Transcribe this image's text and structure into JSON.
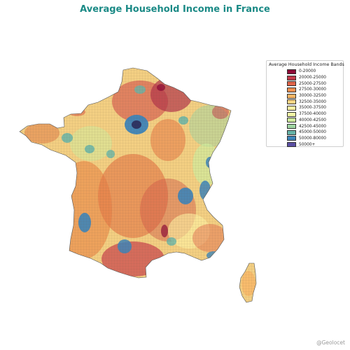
{
  "title": "Average Household Income in France",
  "credit": "@Geolocet",
  "legend": {
    "title": "Average Household Income Bands",
    "items": [
      {
        "label": "0-20000",
        "color": "#8e0b37"
      },
      {
        "label": "20000-25000",
        "color": "#c23a4a"
      },
      {
        "label": "25000-27500",
        "color": "#e0644a"
      },
      {
        "label": "27500-30000",
        "color": "#ef8f4f"
      },
      {
        "label": "30000-32500",
        "color": "#f7b566"
      },
      {
        "label": "32500-35000",
        "color": "#fbd686"
      },
      {
        "label": "35000-37500",
        "color": "#fdf1a4"
      },
      {
        "label": "37500-40000",
        "color": "#f3f8a6"
      },
      {
        "label": "40000-42500",
        "color": "#cfeb9c"
      },
      {
        "label": "42500-45000",
        "color": "#9fd5a2"
      },
      {
        "label": "45000-50000",
        "color": "#66b4a8"
      },
      {
        "label": "50000-80000",
        "color": "#3d84b8"
      },
      {
        "label": "50000+",
        "color": "#5b4fa4"
      }
    ]
  },
  "map": {
    "regions": [
      "mainland-france",
      "corsica"
    ]
  }
}
